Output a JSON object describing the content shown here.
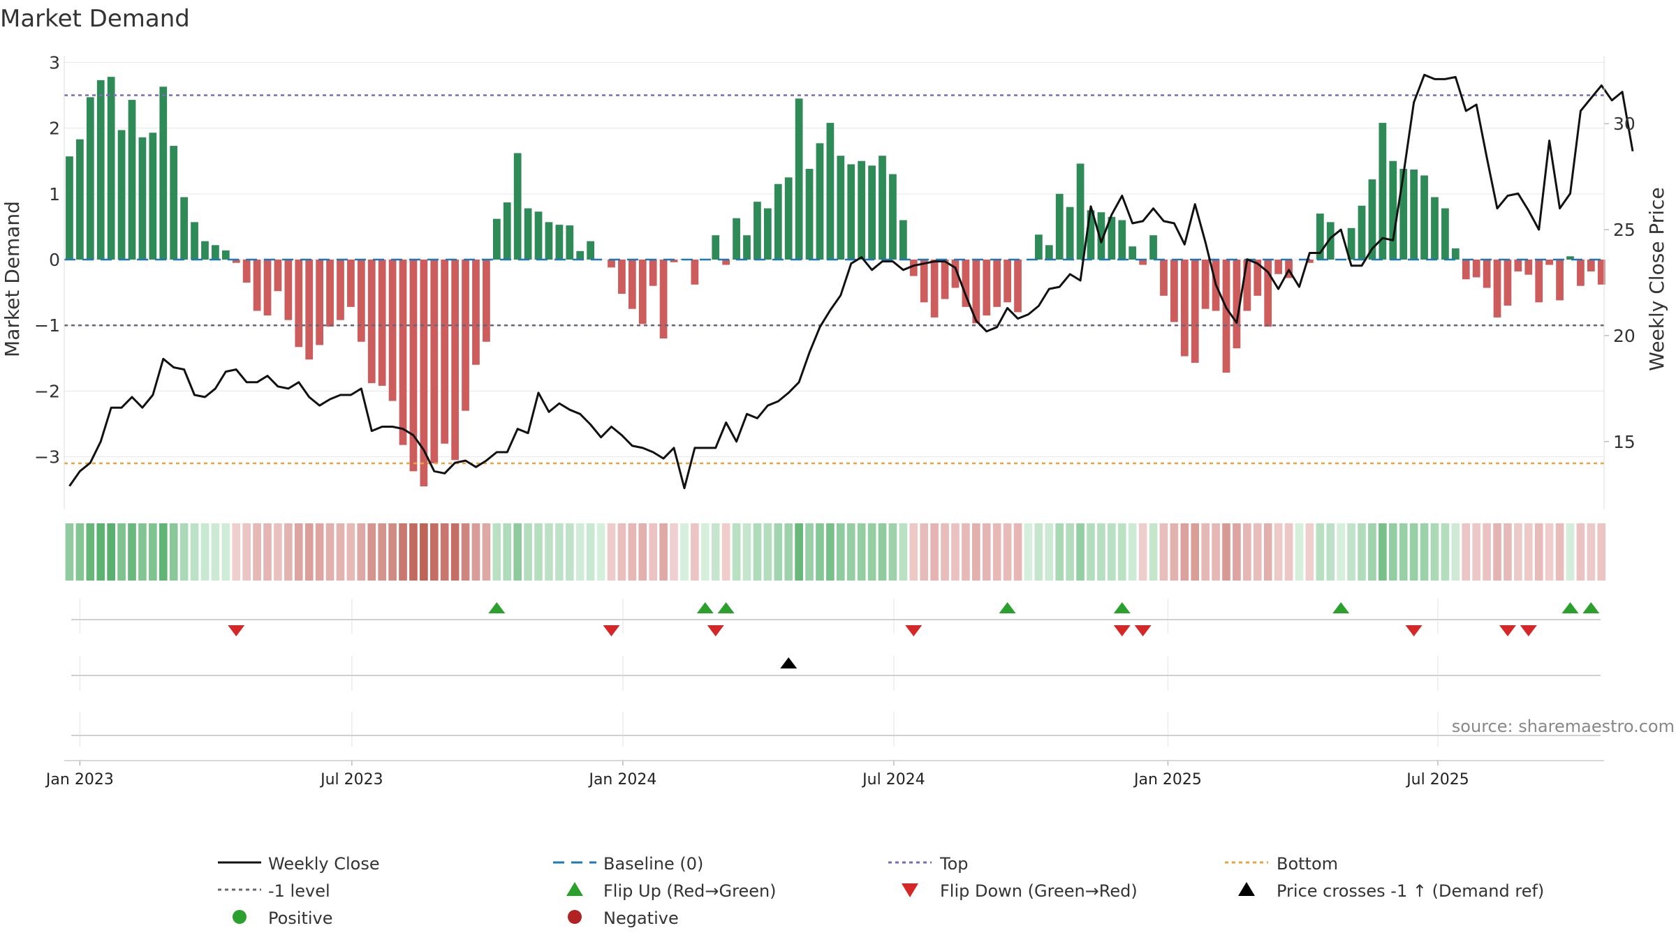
{
  "chart_data": {
    "type": "bar",
    "title": "Market Demand",
    "ylabel_left": "Market Demand",
    "ylabel_right": "Weekly Close Price",
    "ylim_left": [
      -3.8,
      3.1
    ],
    "ylim_right": [
      11.8,
      33.2
    ],
    "y_ticks_left": [
      "3",
      "2",
      "1",
      "0",
      "−1",
      "−2",
      "−3"
    ],
    "y_tick_values_left": [
      3,
      2,
      1,
      0,
      -1,
      -2,
      -3
    ],
    "y_ticks_right": [
      "30",
      "25",
      "20",
      "15"
    ],
    "y_tick_values_right": [
      30,
      25,
      20,
      15
    ],
    "x_ticks": [
      "Jan 2023",
      "Jul 2023",
      "Jan 2024",
      "Jul 2024",
      "Jan 2025",
      "Jul 2025"
    ],
    "x_tick_weeks": [
      1,
      27.1,
      53.1,
      79.1,
      105.4,
      131.3
    ],
    "grid": true,
    "reference_lines": {
      "top": 2.5,
      "bottom": -3.1,
      "minus_one": -1,
      "baseline": 0
    },
    "demand": [
      1.57,
      1.83,
      2.47,
      2.73,
      2.78,
      1.97,
      2.43,
      1.86,
      1.93,
      2.63,
      1.73,
      0.95,
      0.57,
      0.28,
      0.22,
      0.14,
      -0.05,
      -0.35,
      -0.78,
      -0.85,
      -0.48,
      -0.92,
      -1.33,
      -1.52,
      -1.3,
      -1.02,
      -0.92,
      -0.72,
      -1.25,
      -1.88,
      -1.92,
      -2.15,
      -2.82,
      -3.22,
      -3.45,
      -3.1,
      -2.8,
      -3.05,
      -2.3,
      -1.6,
      -1.25,
      0.62,
      0.87,
      1.62,
      0.78,
      0.73,
      0.57,
      0.53,
      0.52,
      0.13,
      0.28,
      0.0,
      -0.12,
      -0.52,
      -0.75,
      -0.98,
      -0.4,
      -1.2,
      -0.04,
      0.01,
      -0.38,
      0.0,
      0.37,
      -0.08,
      0.63,
      0.37,
      0.88,
      0.78,
      1.15,
      1.25,
      2.45,
      1.38,
      1.77,
      2.08,
      1.58,
      1.45,
      1.5,
      1.43,
      1.58,
      1.3,
      0.6,
      -0.25,
      -0.65,
      -0.88,
      -0.6,
      -0.43,
      -0.72,
      -0.97,
      -0.85,
      -0.72,
      -0.65,
      -0.8,
      0.0,
      0.38,
      0.22,
      1.0,
      0.8,
      1.46,
      0.75,
      0.72,
      0.65,
      0.6,
      0.2,
      -0.08,
      0.37,
      -0.55,
      -0.95,
      -1.47,
      -1.57,
      -0.75,
      -0.78,
      -1.72,
      -1.35,
      -0.78,
      -0.55,
      -1.02,
      -0.22,
      -0.28,
      0.0,
      -0.05,
      0.7,
      0.57,
      0.0,
      0.48,
      0.82,
      1.22,
      2.08,
      1.5,
      1.38,
      1.37,
      1.28,
      0.95,
      0.78,
      0.17,
      -0.3,
      -0.27,
      -0.43,
      -0.88,
      -0.7,
      -0.18,
      -0.23,
      -0.65,
      -0.08,
      -0.62,
      0.05,
      -0.4,
      -0.18,
      -0.38
    ],
    "weekly_close": [
      12.9,
      13.6,
      14.0,
      15.0,
      16.6,
      16.6,
      17.1,
      16.6,
      17.2,
      18.9,
      18.5,
      18.4,
      17.2,
      17.1,
      17.5,
      18.3,
      18.4,
      17.8,
      17.8,
      18.1,
      17.6,
      17.5,
      17.8,
      17.1,
      16.7,
      17.0,
      17.2,
      17.2,
      17.5,
      15.5,
      15.7,
      15.7,
      15.6,
      15.3,
      14.6,
      13.6,
      13.5,
      14.0,
      14.1,
      13.8,
      14.1,
      14.5,
      14.5,
      15.6,
      15.4,
      17.3,
      16.4,
      16.8,
      16.5,
      16.3,
      15.8,
      15.2,
      15.7,
      15.3,
      14.8,
      14.7,
      14.5,
      14.2,
      14.7,
      12.8,
      14.7,
      14.7,
      14.7,
      15.9,
      15.0,
      16.3,
      16.1,
      16.7,
      16.9,
      17.3,
      17.8,
      19.2,
      20.4,
      21.2,
      21.9,
      23.4,
      23.7,
      23.1,
      23.5,
      23.5,
      23.1,
      23.3,
      23.4,
      23.5,
      23.5,
      23.2,
      21.9,
      20.7,
      20.2,
      20.4,
      21.3,
      20.8,
      21.0,
      21.4,
      22.2,
      22.3,
      22.9,
      22.6,
      26.1,
      24.4,
      25.7,
      26.6,
      25.3,
      25.4,
      26.0,
      25.4,
      25.3,
      24.3,
      26.2,
      24.4,
      22.4,
      21.3,
      20.6,
      23.6,
      23.4,
      23.0,
      22.2,
      23.1,
      22.3,
      23.9,
      23.9,
      24.6,
      25.0,
      23.3,
      23.3,
      24.1,
      24.6,
      24.5,
      27.6,
      31.0,
      32.3,
      32.1,
      32.1,
      32.2,
      30.6,
      30.9,
      28.4,
      26.0,
      26.6,
      26.7,
      25.9,
      25.0,
      29.2,
      26.0,
      26.7,
      30.6,
      31.2,
      31.8,
      31.1,
      31.5,
      28.7
    ],
    "flip_up_weeks": [
      41,
      61,
      63,
      90,
      101,
      122,
      144,
      146
    ],
    "flip_down_weeks": [
      16,
      52,
      62,
      81,
      101,
      103,
      129,
      138,
      140
    ],
    "price_cross_weeks": [
      69
    ],
    "legend": {
      "weekly_close": "Weekly Close",
      "baseline": "Baseline (0)",
      "top": "Top",
      "bottom": "Bottom",
      "minus_one": "-1 level",
      "flip_up": "Flip Up (Red→Green)",
      "flip_down": "Flip Down (Green→Red)",
      "price_cross": "Price crosses -1 ↑ (Demand ref)",
      "positive": "Positive",
      "negative": "Negative"
    },
    "source": "source: sharemaestro.com"
  },
  "colors": {
    "positive_bar": "#2e8b57",
    "negative_bar": "#cd5c5c",
    "price_line": "#111111",
    "baseline": "#1f77b4",
    "top": "#7a6ab8",
    "bottom": "#e8a33d",
    "minus_one": "#666677",
    "flip_up": "#2ca02c",
    "flip_down": "#d62728",
    "price_cross": "#000000",
    "positive_dot": "#2ca02c",
    "negative_dot": "#b22222"
  }
}
